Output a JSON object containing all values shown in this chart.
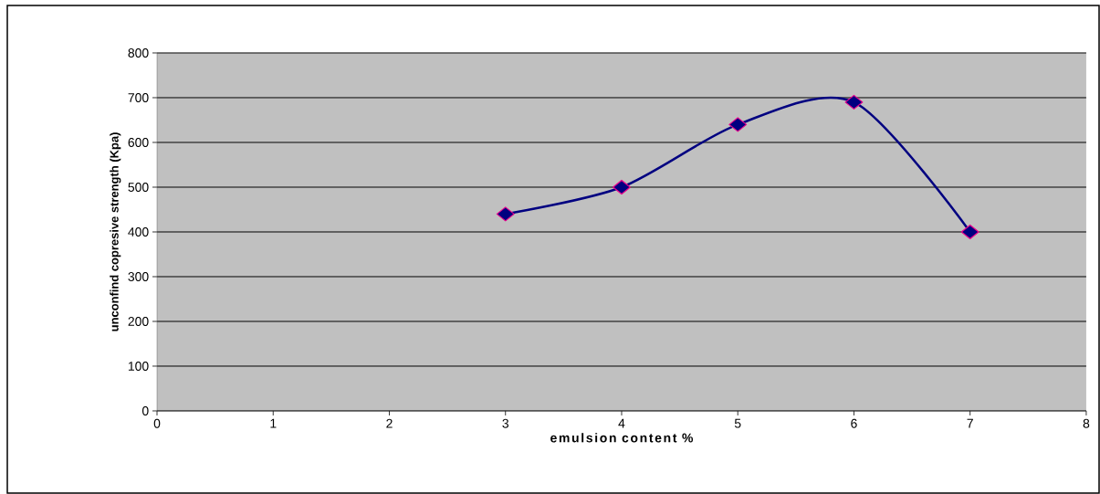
{
  "chart_data": {
    "type": "line",
    "xlabel": "emulsion content %",
    "ylabel": "unconfind copresive strength (Kpa)",
    "x": [
      3,
      4,
      5,
      6,
      7
    ],
    "series": [
      {
        "color": "#000080",
        "values": [
          440,
          500,
          640,
          690,
          400
        ]
      }
    ],
    "xlim": [
      0,
      8
    ],
    "xticks": [
      0,
      1,
      2,
      3,
      4,
      5,
      6,
      7,
      8
    ],
    "ylim": [
      0,
      800
    ],
    "yticks": [
      0,
      100,
      200,
      300,
      400,
      500,
      600,
      700,
      800
    ],
    "grid": "y",
    "marker": "diamond",
    "line_style": "solid"
  }
}
